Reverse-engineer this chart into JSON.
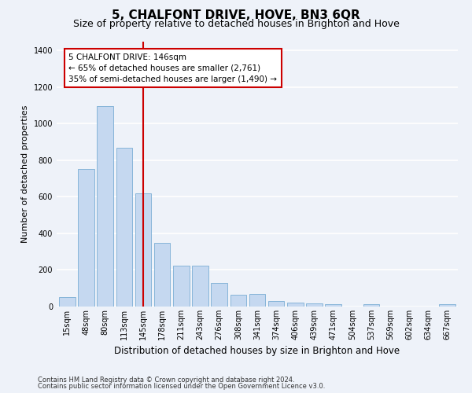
{
  "title": "5, CHALFONT DRIVE, HOVE, BN3 6QR",
  "subtitle": "Size of property relative to detached houses in Brighton and Hove",
  "xlabel": "Distribution of detached houses by size in Brighton and Hove",
  "ylabel": "Number of detached properties",
  "footnote1": "Contains HM Land Registry data © Crown copyright and database right 2024.",
  "footnote2": "Contains public sector information licensed under the Open Government Licence v3.0.",
  "categories": [
    "15sqm",
    "48sqm",
    "80sqm",
    "113sqm",
    "145sqm",
    "178sqm",
    "211sqm",
    "243sqm",
    "276sqm",
    "308sqm",
    "341sqm",
    "374sqm",
    "406sqm",
    "439sqm",
    "471sqm",
    "504sqm",
    "537sqm",
    "569sqm",
    "602sqm",
    "634sqm",
    "667sqm"
  ],
  "values": [
    50,
    750,
    1095,
    870,
    620,
    350,
    225,
    225,
    130,
    65,
    70,
    28,
    20,
    18,
    12,
    0,
    13,
    0,
    0,
    0,
    15
  ],
  "bar_color": "#c5d8f0",
  "bar_edge_color": "#7aaed4",
  "vline_x": 4,
  "vline_color": "#cc0000",
  "annotation_text": "5 CHALFONT DRIVE: 146sqm\n← 65% of detached houses are smaller (2,761)\n35% of semi-detached houses are larger (1,490) →",
  "annotation_box_facecolor": "#ffffff",
  "annotation_box_edgecolor": "#cc0000",
  "ylim": [
    0,
    1450
  ],
  "yticks": [
    0,
    200,
    400,
    600,
    800,
    1000,
    1200,
    1400
  ],
  "background_color": "#eef2f9",
  "grid_color": "#ffffff",
  "title_fontsize": 11,
  "subtitle_fontsize": 9,
  "tick_fontsize": 7,
  "ylabel_fontsize": 8,
  "xlabel_fontsize": 8.5,
  "footnote_fontsize": 6,
  "annotation_fontsize": 7.5
}
